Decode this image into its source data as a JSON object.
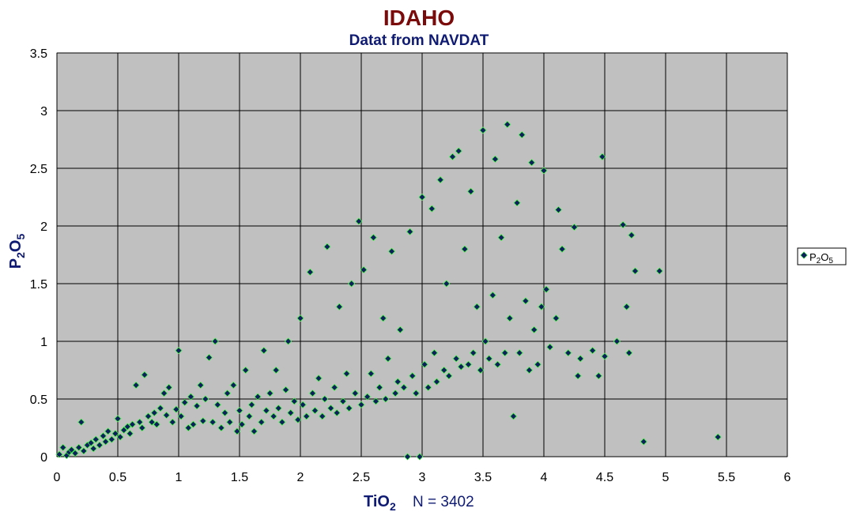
{
  "chart_data": {
    "type": "scatter",
    "title": "IDAHO",
    "subtitle": "Datat from NAVDAT",
    "xlabel": "TiO2",
    "xlabel_main": "TiO",
    "xlabel_sub": "2",
    "annotation": "N = 3402",
    "ylabel": "P2O5",
    "ylabel_parts": [
      "P",
      "2",
      "O",
      "5"
    ],
    "xlim": [
      0,
      6
    ],
    "ylim": [
      0,
      3.5
    ],
    "x_ticks": [
      "0",
      "0.5",
      "1",
      "1.5",
      "2",
      "2.5",
      "3",
      "3.5",
      "4",
      "4.5",
      "5",
      "5.5",
      "6"
    ],
    "y_ticks": [
      "0",
      "0.5",
      "1",
      "1.5",
      "2",
      "2.5",
      "3",
      "3.5"
    ],
    "grid": true,
    "legend_position": "right",
    "series": [
      {
        "name": "P2O5",
        "name_parts": [
          "P",
          "2",
          "O",
          "5"
        ],
        "points_note": "N = 3402 points; representative sample below",
        "points": [
          [
            0.02,
            0.02
          ],
          [
            0.05,
            0.08
          ],
          [
            0.08,
            0.01
          ],
          [
            0.1,
            0.04
          ],
          [
            0.12,
            0.06
          ],
          [
            0.15,
            0.03
          ],
          [
            0.18,
            0.08
          ],
          [
            0.2,
            0.3
          ],
          [
            0.22,
            0.05
          ],
          [
            0.25,
            0.1
          ],
          [
            0.28,
            0.12
          ],
          [
            0.3,
            0.07
          ],
          [
            0.32,
            0.15
          ],
          [
            0.35,
            0.1
          ],
          [
            0.38,
            0.18
          ],
          [
            0.4,
            0.13
          ],
          [
            0.42,
            0.22
          ],
          [
            0.45,
            0.15
          ],
          [
            0.48,
            0.2
          ],
          [
            0.5,
            0.33
          ],
          [
            0.52,
            0.17
          ],
          [
            0.55,
            0.23
          ],
          [
            0.58,
            0.26
          ],
          [
            0.6,
            0.2
          ],
          [
            0.62,
            0.28
          ],
          [
            0.65,
            0.62
          ],
          [
            0.68,
            0.3
          ],
          [
            0.7,
            0.25
          ],
          [
            0.72,
            0.71
          ],
          [
            0.75,
            0.35
          ],
          [
            0.78,
            0.3
          ],
          [
            0.8,
            0.38
          ],
          [
            0.82,
            0.28
          ],
          [
            0.85,
            0.42
          ],
          [
            0.88,
            0.55
          ],
          [
            0.9,
            0.36
          ],
          [
            0.92,
            0.6
          ],
          [
            0.95,
            0.3
          ],
          [
            0.98,
            0.41
          ],
          [
            1.0,
            0.92
          ],
          [
            1.02,
            0.35
          ],
          [
            1.05,
            0.47
          ],
          [
            1.08,
            0.25
          ],
          [
            1.1,
            0.52
          ],
          [
            1.12,
            0.28
          ],
          [
            1.15,
            0.44
          ],
          [
            1.18,
            0.62
          ],
          [
            1.2,
            0.31
          ],
          [
            1.22,
            0.5
          ],
          [
            1.25,
            0.86
          ],
          [
            1.28,
            0.3
          ],
          [
            1.3,
            1.0
          ],
          [
            1.32,
            0.45
          ],
          [
            1.35,
            0.25
          ],
          [
            1.38,
            0.38
          ],
          [
            1.4,
            0.55
          ],
          [
            1.42,
            0.3
          ],
          [
            1.45,
            0.62
          ],
          [
            1.48,
            0.22
          ],
          [
            1.5,
            0.4
          ],
          [
            1.52,
            0.28
          ],
          [
            1.55,
            0.75
          ],
          [
            1.58,
            0.35
          ],
          [
            1.6,
            0.45
          ],
          [
            1.62,
            0.22
          ],
          [
            1.65,
            0.52
          ],
          [
            1.68,
            0.3
          ],
          [
            1.7,
            0.92
          ],
          [
            1.72,
            0.4
          ],
          [
            1.75,
            0.55
          ],
          [
            1.78,
            0.35
          ],
          [
            1.8,
            0.75
          ],
          [
            1.82,
            0.42
          ],
          [
            1.85,
            0.3
          ],
          [
            1.88,
            0.58
          ],
          [
            1.9,
            1.0
          ],
          [
            1.92,
            0.38
          ],
          [
            1.95,
            0.48
          ],
          [
            1.98,
            0.32
          ],
          [
            2.0,
            1.2
          ],
          [
            2.02,
            0.45
          ],
          [
            2.05,
            0.35
          ],
          [
            2.08,
            1.6
          ],
          [
            2.1,
            0.55
          ],
          [
            2.12,
            0.4
          ],
          [
            2.15,
            0.68
          ],
          [
            2.18,
            0.35
          ],
          [
            2.2,
            0.5
          ],
          [
            2.22,
            1.82
          ],
          [
            2.25,
            0.42
          ],
          [
            2.28,
            0.6
          ],
          [
            2.3,
            0.38
          ],
          [
            2.32,
            1.3
          ],
          [
            2.35,
            0.48
          ],
          [
            2.38,
            0.72
          ],
          [
            2.4,
            0.42
          ],
          [
            2.42,
            1.5
          ],
          [
            2.45,
            0.55
          ],
          [
            2.48,
            2.04
          ],
          [
            2.5,
            0.45
          ],
          [
            2.52,
            1.62
          ],
          [
            2.55,
            0.52
          ],
          [
            2.58,
            0.72
          ],
          [
            2.6,
            1.9
          ],
          [
            2.62,
            0.48
          ],
          [
            2.65,
            0.6
          ],
          [
            2.68,
            1.2
          ],
          [
            2.7,
            0.5
          ],
          [
            2.72,
            0.85
          ],
          [
            2.75,
            1.78
          ],
          [
            2.78,
            0.55
          ],
          [
            2.8,
            0.65
          ],
          [
            2.82,
            1.1
          ],
          [
            2.85,
            0.6
          ],
          [
            2.88,
            0.0
          ],
          [
            2.9,
            1.95
          ],
          [
            2.92,
            0.7
          ],
          [
            2.95,
            0.55
          ],
          [
            2.98,
            0.0
          ],
          [
            3.0,
            2.25
          ],
          [
            3.02,
            0.8
          ],
          [
            3.05,
            0.6
          ],
          [
            3.08,
            2.15
          ],
          [
            3.1,
            0.9
          ],
          [
            3.12,
            0.65
          ],
          [
            3.15,
            2.4
          ],
          [
            3.18,
            0.75
          ],
          [
            3.2,
            1.5
          ],
          [
            3.22,
            0.7
          ],
          [
            3.25,
            2.6
          ],
          [
            3.28,
            0.85
          ],
          [
            3.3,
            2.65
          ],
          [
            3.32,
            0.78
          ],
          [
            3.35,
            1.8
          ],
          [
            3.38,
            0.8
          ],
          [
            3.4,
            2.3
          ],
          [
            3.42,
            0.9
          ],
          [
            3.45,
            1.3
          ],
          [
            3.48,
            0.75
          ],
          [
            3.5,
            2.83
          ],
          [
            3.52,
            1.0
          ],
          [
            3.55,
            0.85
          ],
          [
            3.58,
            1.4
          ],
          [
            3.6,
            2.58
          ],
          [
            3.62,
            0.8
          ],
          [
            3.65,
            1.9
          ],
          [
            3.68,
            0.9
          ],
          [
            3.7,
            2.88
          ],
          [
            3.72,
            1.2
          ],
          [
            3.75,
            0.35
          ],
          [
            3.78,
            2.2
          ],
          [
            3.8,
            0.9
          ],
          [
            3.82,
            2.79
          ],
          [
            3.85,
            1.35
          ],
          [
            3.88,
            0.75
          ],
          [
            3.9,
            2.55
          ],
          [
            3.92,
            1.1
          ],
          [
            3.95,
            0.8
          ],
          [
            3.98,
            1.3
          ],
          [
            4.0,
            2.48
          ],
          [
            4.02,
            1.45
          ],
          [
            4.05,
            0.95
          ],
          [
            4.1,
            1.2
          ],
          [
            4.12,
            2.14
          ],
          [
            4.15,
            1.8
          ],
          [
            4.2,
            0.9
          ],
          [
            4.25,
            1.99
          ],
          [
            4.28,
            0.7
          ],
          [
            4.3,
            0.85
          ],
          [
            4.4,
            0.92
          ],
          [
            4.45,
            0.7
          ],
          [
            4.48,
            2.6
          ],
          [
            4.5,
            0.87
          ],
          [
            4.6,
            1.0
          ],
          [
            4.65,
            2.01
          ],
          [
            4.68,
            1.3
          ],
          [
            4.7,
            0.9
          ],
          [
            4.72,
            1.92
          ],
          [
            4.75,
            1.61
          ],
          [
            4.82,
            0.13
          ],
          [
            4.95,
            1.61
          ],
          [
            5.43,
            0.17
          ]
        ]
      }
    ],
    "marker_fill": "#0d1f5c",
    "marker_stroke": "#39ff39",
    "plot_background": "#c0c0c0",
    "title_color": "#7b0b0b",
    "label_color": "#0f1b73"
  }
}
